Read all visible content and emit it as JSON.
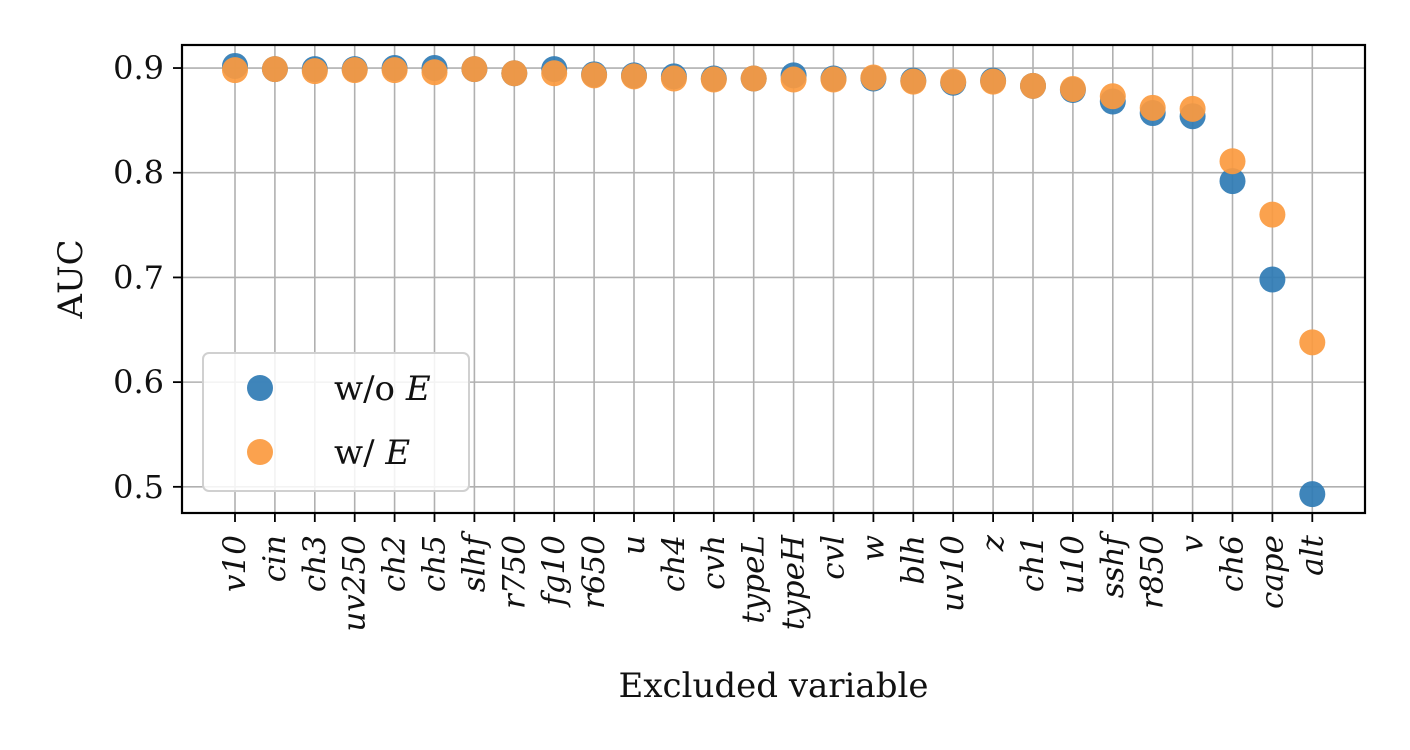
{
  "chart_data": {
    "type": "scatter",
    "xlabel": "Excluded variable",
    "ylabel": "AUC",
    "ylim": [
      0.475,
      0.922
    ],
    "yticks": [
      0.5,
      0.6,
      0.7,
      0.8,
      0.9
    ],
    "ytick_labels": [
      "0.5",
      "0.6",
      "0.7",
      "0.8",
      "0.9"
    ],
    "grid": true,
    "legend_position": "lower-left",
    "categories": [
      "v10",
      "cin",
      "ch3",
      "uv250",
      "ch2",
      "ch5",
      "slhf",
      "r750",
      "fg10",
      "r650",
      "u",
      "ch4",
      "cvh",
      "typeL",
      "typeH",
      "cvl",
      "w",
      "blh",
      "uv10",
      "z",
      "ch1",
      "u10",
      "sshf",
      "r850",
      "v",
      "ch6",
      "cape",
      "alt"
    ],
    "series": [
      {
        "name": "w/o E",
        "legend_prefix": "w/o ",
        "legend_var": "E",
        "color": "#2f7bb4",
        "values": [
          0.902,
          0.899,
          0.899,
          0.899,
          0.9,
          0.9,
          0.899,
          0.895,
          0.899,
          0.894,
          0.893,
          0.892,
          0.89,
          0.89,
          0.893,
          0.89,
          0.89,
          0.888,
          0.886,
          0.888,
          0.883,
          0.879,
          0.868,
          0.857,
          0.854,
          0.792,
          0.698,
          0.493
        ]
      },
      {
        "name": "w/ E",
        "legend_prefix": "w/ ",
        "legend_var": "E",
        "color": "#fb9a3f",
        "values": [
          0.898,
          0.899,
          0.897,
          0.898,
          0.898,
          0.896,
          0.899,
          0.895,
          0.895,
          0.893,
          0.892,
          0.89,
          0.889,
          0.89,
          0.889,
          0.889,
          0.891,
          0.887,
          0.887,
          0.887,
          0.883,
          0.88,
          0.873,
          0.862,
          0.861,
          0.811,
          0.76,
          0.638
        ]
      }
    ]
  }
}
